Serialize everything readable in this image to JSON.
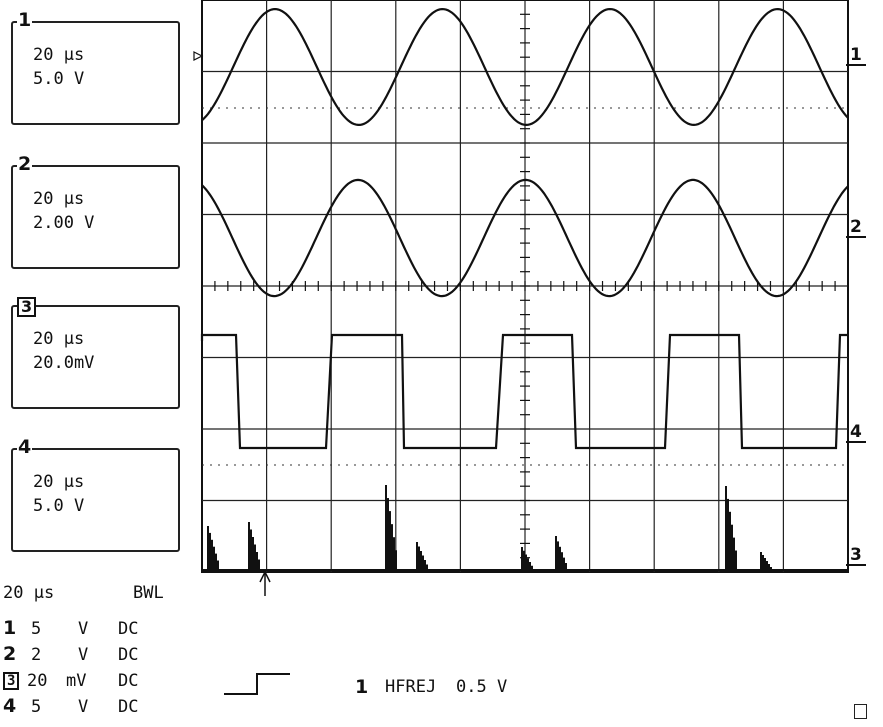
{
  "channels": [
    {
      "num": "1",
      "timebase": "20 μs",
      "scale": "5.0 V"
    },
    {
      "num": "2",
      "timebase": "20 μs",
      "scale": "2.00 V"
    },
    {
      "num": "3",
      "timebase": "20 μs",
      "scale": "20.0mV"
    },
    {
      "num": "4",
      "timebase": "20 μs",
      "scale": "5.0 V"
    }
  ],
  "summary": {
    "timebase": "20 μs",
    "bwl": "BWL",
    "rows": [
      {
        "num": "1",
        "value": "5",
        "unit": "V",
        "coupling": "DC"
      },
      {
        "num": "2",
        "value": "2",
        "unit": "V",
        "coupling": "DC"
      },
      {
        "num": "3",
        "value": "20",
        "unit": "mV",
        "coupling": "DC"
      },
      {
        "num": "4",
        "value": "5",
        "unit": "V",
        "coupling": "DC"
      }
    ]
  },
  "trigger": {
    "source": "1",
    "mode": "HFREJ",
    "level": "0.5 V"
  },
  "trace_markers": [
    "1",
    "2",
    "4",
    "3"
  ],
  "chart_data": {
    "type": "line",
    "grid": true,
    "grid_divisions": {
      "x": 10,
      "y": 8
    },
    "x_unit_per_div": "20 μs",
    "series": [
      {
        "name": "1",
        "shape": "sine",
        "period_us": 55,
        "volts_per_div": 5.0,
        "amplitude_div": 0.9
      },
      {
        "name": "2",
        "shape": "sine",
        "period_us": 55,
        "volts_per_div": 2.0,
        "amplitude_div": 1.25
      },
      {
        "name": "3",
        "shape": "square",
        "period_us": 55,
        "volts_per_div": 0.02,
        "amplitude_div": 0.8
      },
      {
        "name": "4",
        "shape": "spikes",
        "period_us": 55,
        "volts_per_div": 5.0
      }
    ]
  }
}
